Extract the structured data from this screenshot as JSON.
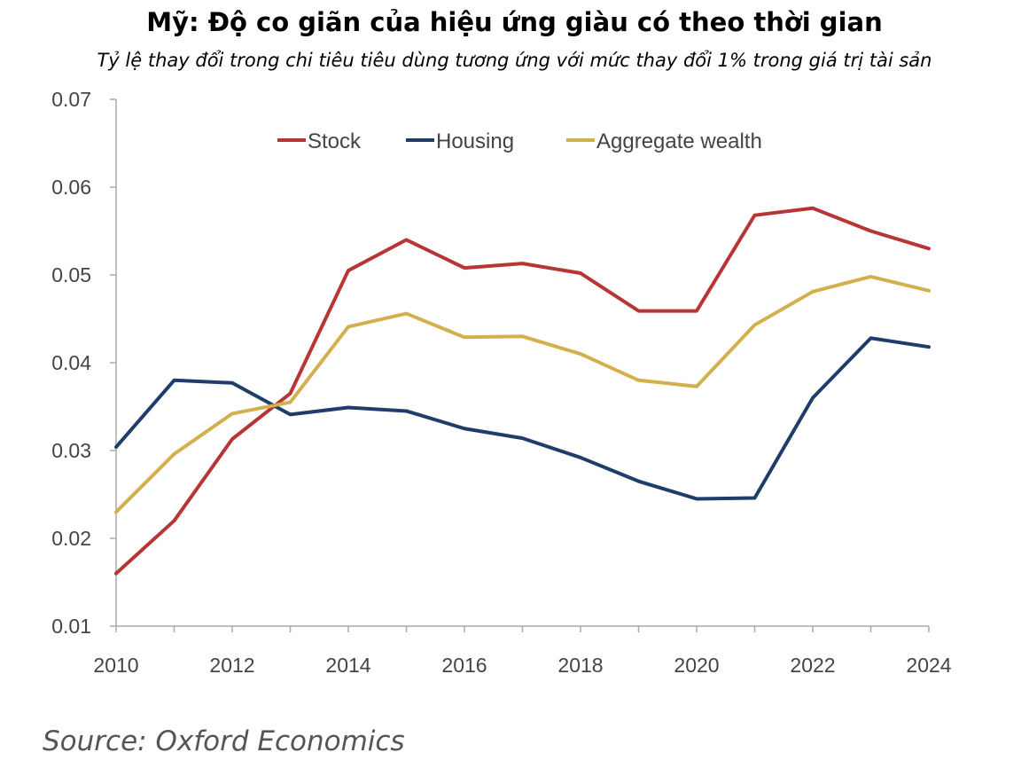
{
  "title": "Mỹ: Độ co giãn của hiệu ứng giàu có theo thời gian",
  "subtitle": "Tỷ lệ thay đổi trong chi tiêu tiêu dùng tương ứng với mức thay đổi 1% trong giá trị tài sản",
  "source": "Source: Oxford Economics",
  "chart_data": {
    "type": "line",
    "x": [
      2010,
      2011,
      2012,
      2013,
      2014,
      2015,
      2016,
      2017,
      2018,
      2019,
      2020,
      2021,
      2022,
      2023,
      2024
    ],
    "xlim": [
      2010,
      2024
    ],
    "ylim": [
      0.01,
      0.07
    ],
    "x_ticks": [
      "2010",
      "2012",
      "2014",
      "2016",
      "2018",
      "2020",
      "2022",
      "2024"
    ],
    "y_ticks": [
      "0.01",
      "0.02",
      "0.03",
      "0.04",
      "0.05",
      "0.06",
      "0.07"
    ],
    "grid": false,
    "legend_position": "top",
    "series": [
      {
        "name": "Stock",
        "color": "#b83535",
        "values": [
          0.016,
          0.022,
          0.0313,
          0.0365,
          0.0505,
          0.054,
          0.0508,
          0.0513,
          0.0502,
          0.0459,
          0.0459,
          0.0568,
          0.0576,
          0.055,
          0.053
        ]
      },
      {
        "name": "Housing",
        "color": "#1f3d6b",
        "values": [
          0.0304,
          0.038,
          0.0377,
          0.0341,
          0.0349,
          0.0345,
          0.0325,
          0.0314,
          0.0292,
          0.0265,
          0.0245,
          0.0246,
          0.036,
          0.0428,
          0.0418
        ]
      },
      {
        "name": "Aggregate wealth",
        "color": "#d4af4e",
        "values": [
          0.023,
          0.0296,
          0.0342,
          0.0355,
          0.0441,
          0.0456,
          0.0429,
          0.043,
          0.041,
          0.038,
          0.0373,
          0.0443,
          0.0481,
          0.0498,
          0.0482
        ]
      }
    ]
  }
}
